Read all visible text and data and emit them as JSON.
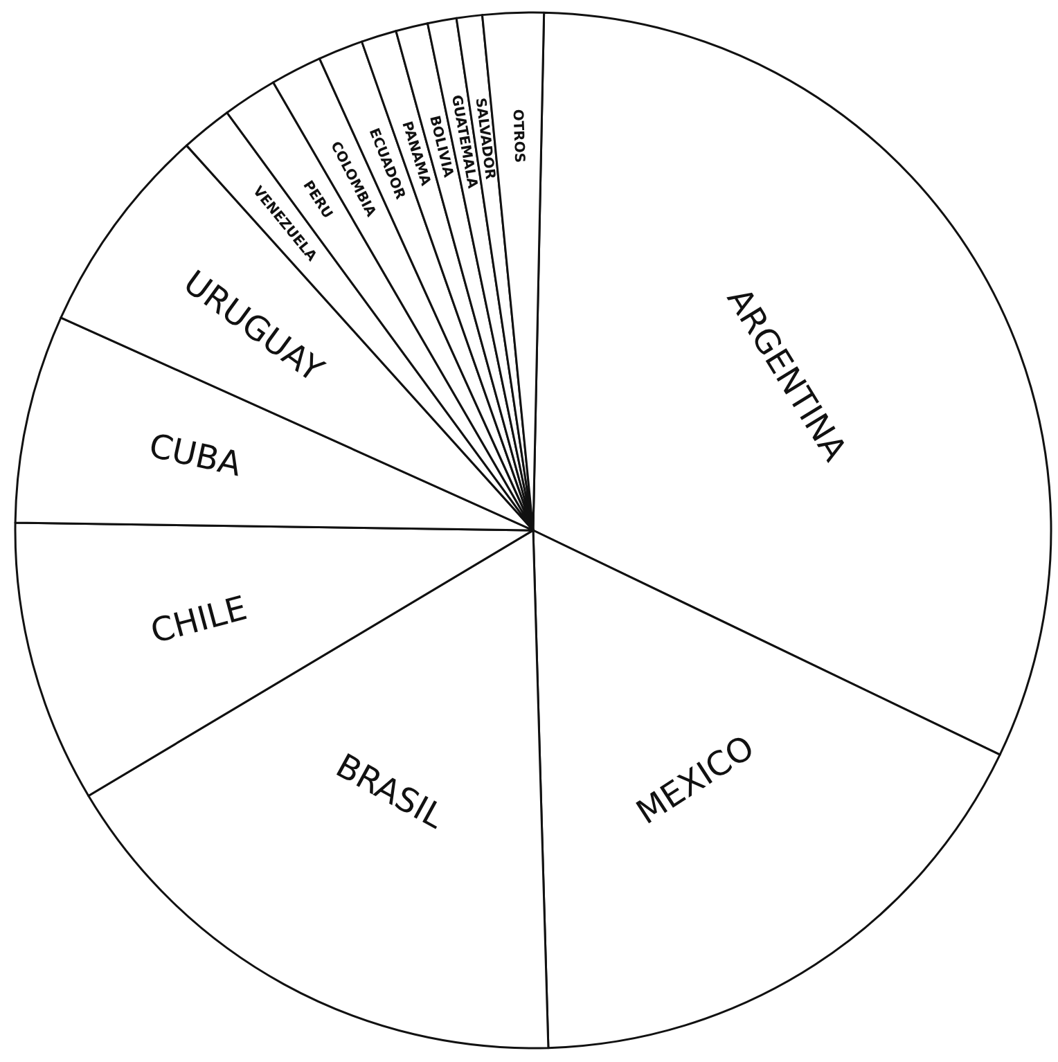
{
  "chart_data": {
    "type": "pie",
    "categories": [
      "ARGENTINA",
      "MEXICO",
      "BRASIL",
      "CHILE",
      "CUBA",
      "URUGUAY",
      "VENEZUELA",
      "PERU",
      "COLOMBIA",
      "ECUADOR",
      "PANAMA",
      "BOLIVIA",
      "GUATEMALA",
      "SALVADOR",
      "OTROS"
    ],
    "values": [
      31.8,
      17.4,
      16.9,
      8.8,
      6.5,
      6.6,
      1.6,
      1.7,
      1.6,
      1.4,
      1.1,
      1.0,
      0.9,
      0.8,
      1.9
    ],
    "colors": [
      "#ffffff",
      "#ffffff",
      "#ffffff",
      "#ffffff",
      "#ffffff",
      "#ffffff",
      "#ffffff",
      "#ffffff",
      "#ffffff",
      "#ffffff",
      "#ffffff",
      "#ffffff",
      "#ffffff",
      "#ffffff",
      "#ffffff"
    ],
    "legend": false
  }
}
